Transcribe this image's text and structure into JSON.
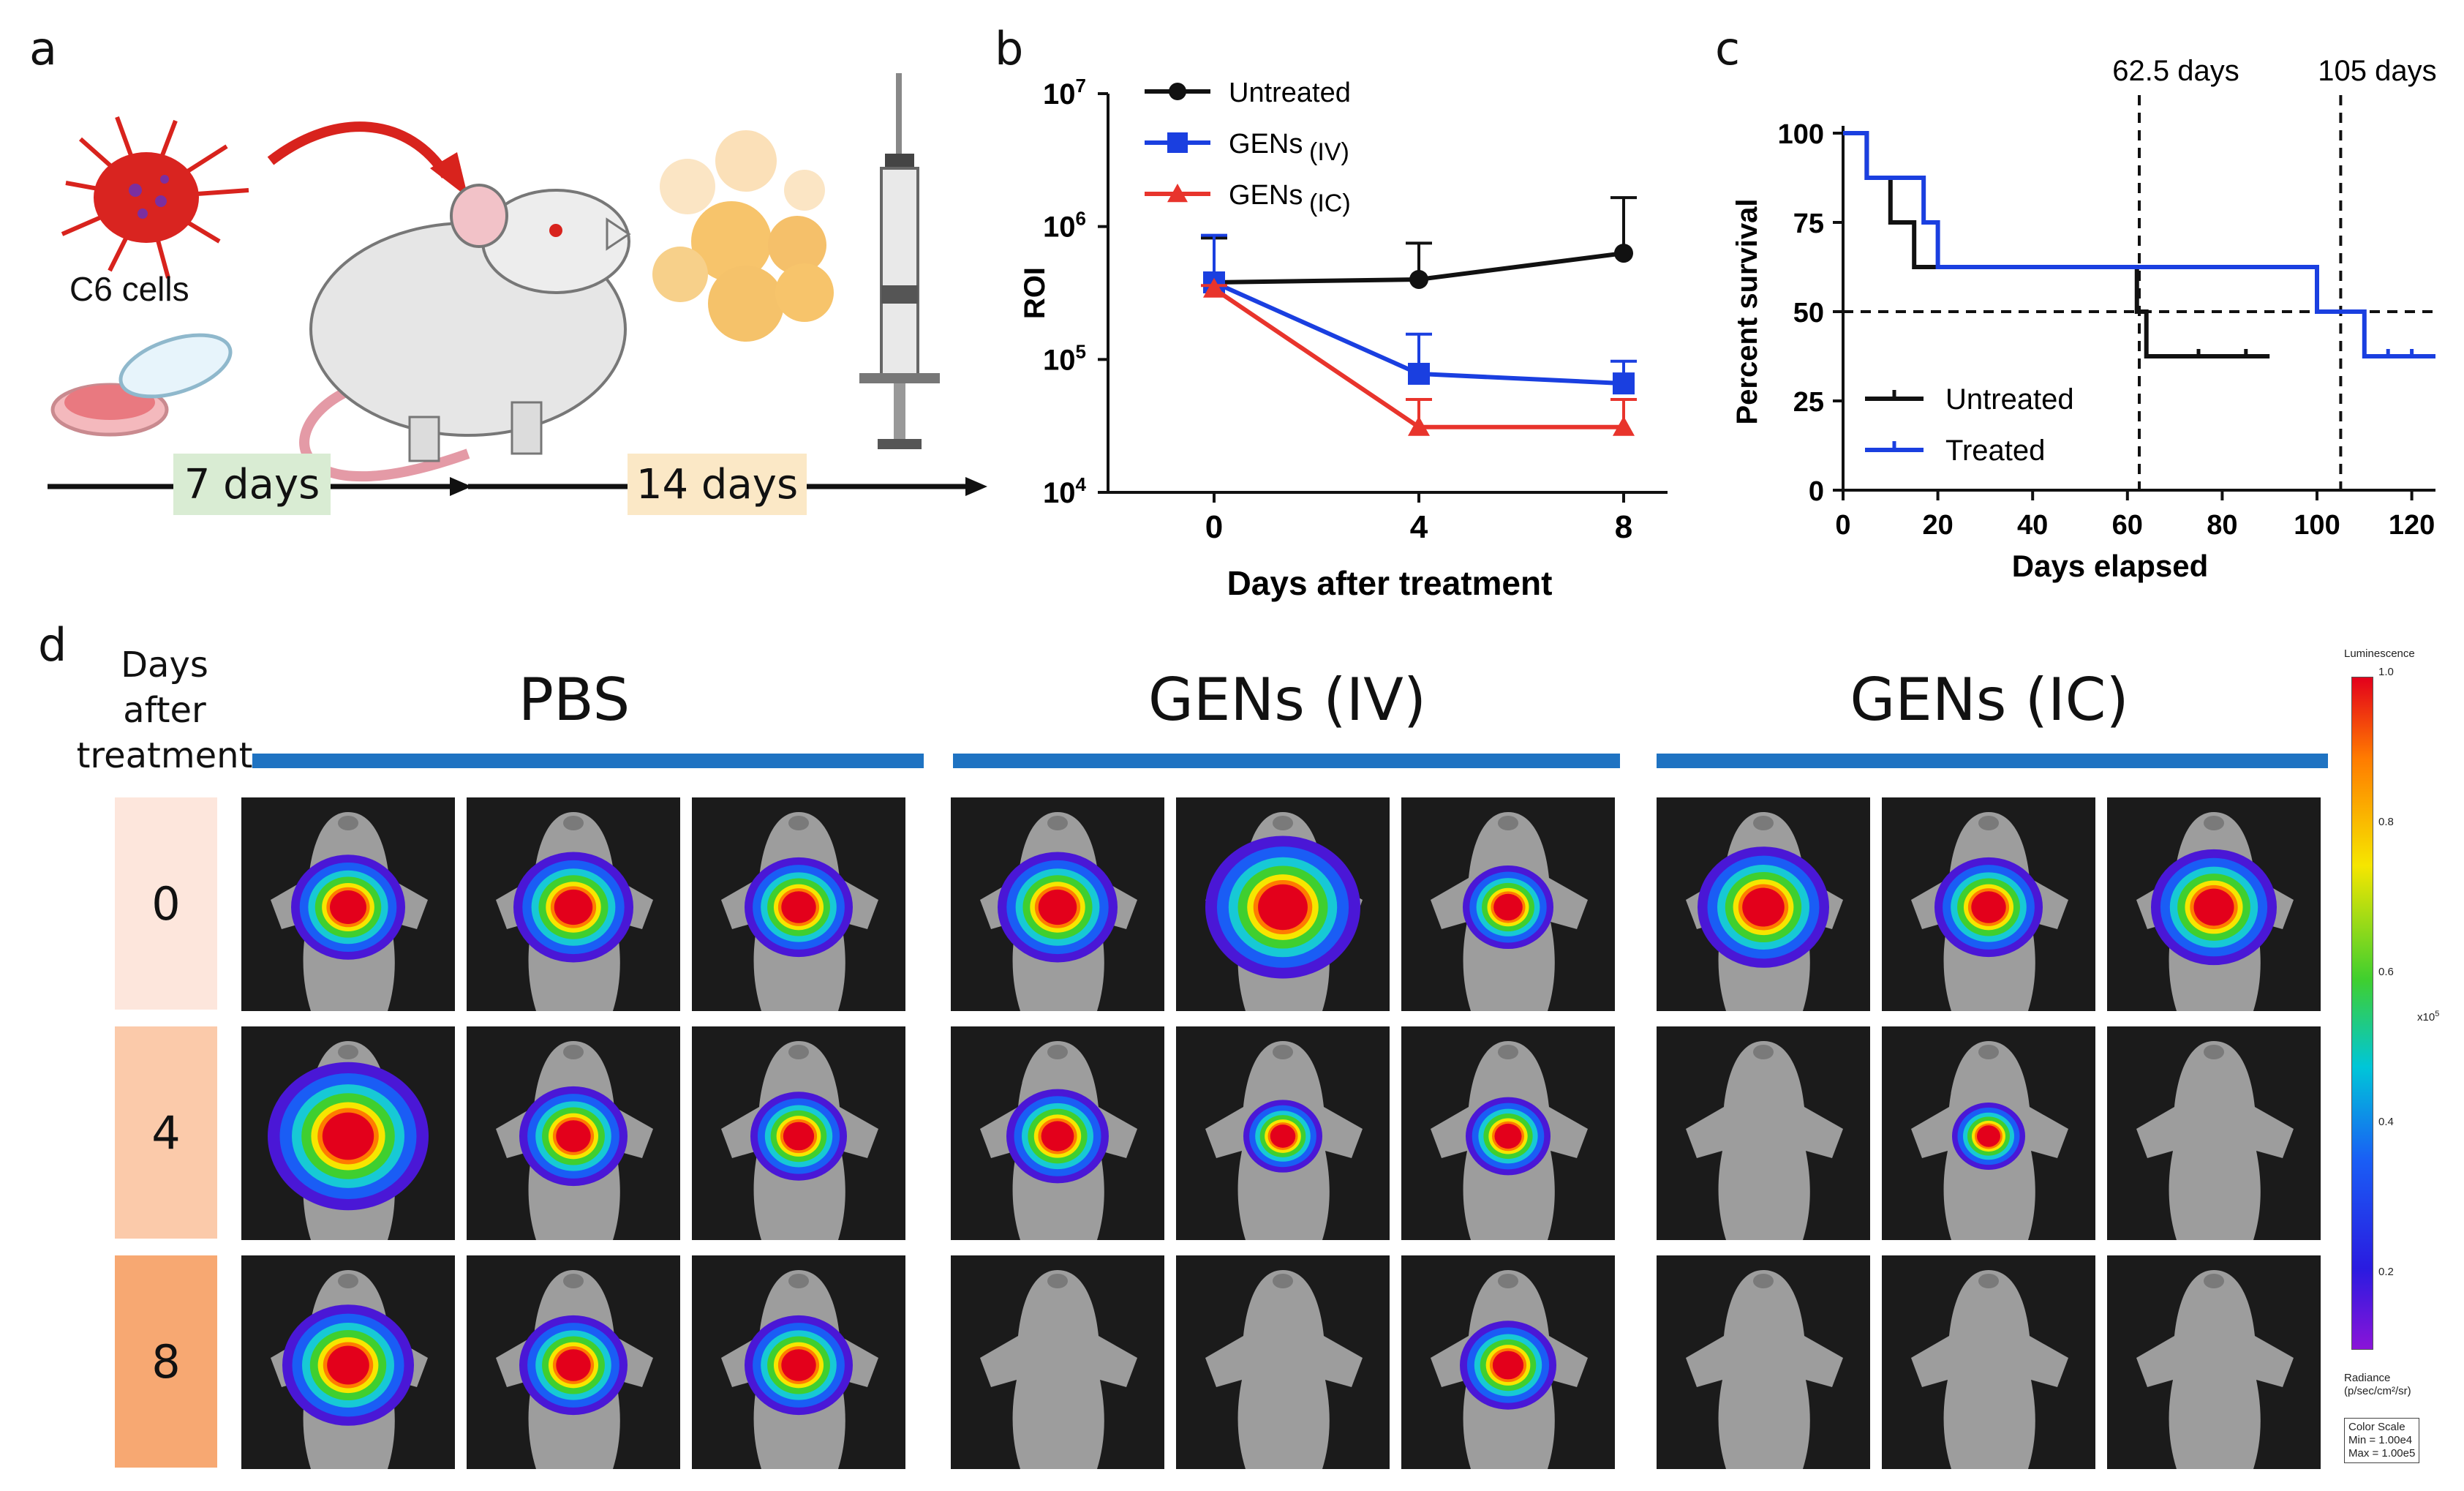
{
  "panels": {
    "a": "a",
    "b": "b",
    "c": "c",
    "d": "d"
  },
  "panel_a": {
    "cells_label": "C6 cells",
    "timeline": [
      "7 days",
      "14 days"
    ]
  },
  "chart_data": [
    {
      "type": "line",
      "panel": "b",
      "xlabel": "Days after treatment",
      "ylabel": "ROI",
      "x": [
        0,
        4,
        8
      ],
      "x_ticks": [
        "0",
        "4",
        "8"
      ],
      "y_scale": "log",
      "ylim": [
        10000,
        10000000
      ],
      "y_tick_labels": [
        [
          "10",
          "7"
        ],
        [
          "10",
          "6"
        ],
        [
          "10",
          "5"
        ],
        [
          "10",
          "4"
        ]
      ],
      "series": [
        {
          "name": "Untreated",
          "suffix": "",
          "color": "#111111",
          "marker": "circle",
          "values": [
            380000,
            400000,
            630000
          ],
          "error_upper": [
            820000,
            750000,
            1650000
          ]
        },
        {
          "name": "GENs",
          "suffix": "(IV)",
          "color": "#1a3fe0",
          "marker": "square",
          "values": [
            380000,
            78000,
            66000
          ],
          "error_upper": [
            860000,
            155000,
            97000
          ]
        },
        {
          "name": "GENs",
          "suffix": "(IC)",
          "color": "#e8342c",
          "marker": "triangle",
          "values": [
            340000,
            31000,
            31000
          ],
          "error_upper": [
            360000,
            50000,
            50000
          ]
        }
      ]
    },
    {
      "type": "line",
      "panel": "c",
      "subtype": "survival",
      "xlabel": "Days elapsed",
      "ylabel": "Percent survival",
      "xlim": [
        0,
        125
      ],
      "ylim": [
        0,
        100
      ],
      "x_ticks": [
        0,
        20,
        40,
        60,
        80,
        100,
        120
      ],
      "y_ticks": [
        0,
        25,
        50,
        75,
        100
      ],
      "reference_lines": [
        {
          "axis": "x",
          "value": 62.5,
          "label": "62.5 days"
        },
        {
          "axis": "x",
          "value": 105,
          "label": "105 days"
        },
        {
          "axis": "y",
          "value": 50,
          "label": ""
        }
      ],
      "series": [
        {
          "name": "Untreated",
          "color": "#111111",
          "steps": [
            [
              0,
              100
            ],
            [
              5,
              87.5
            ],
            [
              10,
              75
            ],
            [
              15,
              62.5
            ],
            [
              62,
              50
            ],
            [
              64,
              37.5
            ],
            [
              90,
              37.5
            ]
          ],
          "censored": [
            [
              75,
              37.5
            ],
            [
              85,
              37.5
            ]
          ]
        },
        {
          "name": "Treated",
          "color": "#1a3fe0",
          "steps": [
            [
              0,
              100
            ],
            [
              5,
              87.5
            ],
            [
              17,
              87.5
            ],
            [
              17,
              75
            ],
            [
              20,
              62.5
            ],
            [
              100,
              50
            ],
            [
              110,
              37.5
            ],
            [
              125,
              37.5
            ]
          ],
          "censored": [
            [
              115,
              37.5
            ],
            [
              120,
              37.5
            ]
          ]
        }
      ]
    }
  ],
  "panel_d": {
    "row_header": [
      "Days",
      "after",
      "treatment"
    ],
    "groups": [
      "PBS",
      "GENs (IV)",
      "GENs (IC)"
    ],
    "days": [
      "0",
      "4",
      "8"
    ],
    "day_colors": [
      "#fde6dc",
      "#fbcaaa",
      "#f7a872"
    ],
    "signal_intensity": [
      [
        [
          0.6,
          0.65,
          0.55
        ],
        [
          0.65,
          0.95,
          0.4
        ],
        [
          0.75,
          0.55,
          0.7
        ]
      ],
      [
        [
          1.0,
          0.55,
          0.45
        ],
        [
          0.5,
          0.3,
          0.35
        ],
        [
          0.0,
          0.25,
          0.0
        ]
      ],
      [
        [
          0.75,
          0.55,
          0.55
        ],
        [
          0.0,
          0.0,
          0.45
        ],
        [
          0.0,
          0.0,
          0.0
        ]
      ]
    ],
    "colorbar": {
      "title": "Luminescence",
      "ticks": [
        "1.0",
        "0.8",
        "0.6",
        "0.4",
        "0.2"
      ],
      "exponent": "x10",
      "exponent_power": "5",
      "radiance": [
        "Radiance",
        "(p/sec/cm²/sr)"
      ],
      "scale": [
        "Color Scale",
        "Min = 1.00e4",
        "Max = 1.00e5"
      ]
    }
  }
}
